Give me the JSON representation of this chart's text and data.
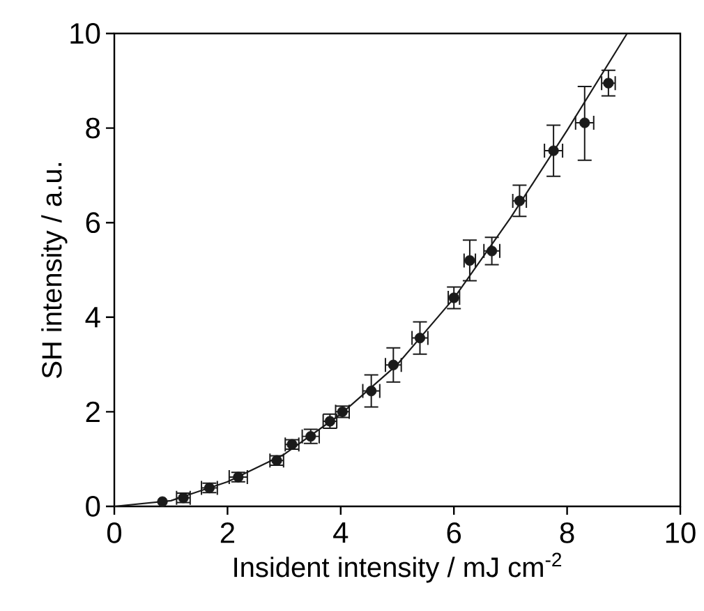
{
  "chart_data": {
    "type": "scatter",
    "xlabel": "Insident intensity / mJ cm$^{-2}$",
    "ylabel": "SH intensity / a.u.",
    "xlim": [
      0,
      10
    ],
    "ylim": [
      0,
      10
    ],
    "xticks": [
      0,
      2,
      4,
      6,
      8,
      10
    ],
    "yticks": [
      0,
      2,
      4,
      6,
      8,
      10
    ],
    "marker": "circle",
    "series": [
      {
        "type": "scatter",
        "color": "#1a1a1a",
        "x": [
          0.85,
          1.22,
          1.68,
          2.19,
          2.87,
          3.14,
          3.47,
          3.81,
          4.03,
          4.54,
          4.93,
          5.4,
          6.0,
          6.28,
          6.67,
          7.16,
          7.76,
          8.31,
          8.73
        ],
        "values": [
          0.1,
          0.18,
          0.39,
          0.62,
          0.97,
          1.31,
          1.48,
          1.8,
          2.0,
          2.44,
          2.99,
          3.56,
          4.41,
          5.2,
          5.4,
          6.46,
          7.52,
          8.11,
          8.95
        ],
        "errors": [
          null,
          0.1,
          0.1,
          0.1,
          0.1,
          0.1,
          0.15,
          0.15,
          0.12,
          0.34,
          0.36,
          0.34,
          0.23,
          0.43,
          0.29,
          0.33,
          0.54,
          [
            7.32,
            8.88
          ],
          0.27
        ],
        "xerrors": [
          null,
          0.12,
          0.14,
          0.16,
          0.12,
          0.12,
          0.15,
          0.12,
          0.12,
          0.15,
          0.14,
          0.14,
          0.1,
          0.1,
          0.14,
          0.12,
          0.16,
          0.16,
          0.12
        ]
      },
      {
        "color": "#1a1a1a",
        "marker": "none",
        "type": "line",
        "line_style": "solid",
        "x": [
          0,
          1,
          2,
          3,
          4,
          5,
          6,
          7,
          8,
          9.06
        ],
        "values": [
          0,
          0.12,
          0.52,
          1.1,
          1.95,
          3.0,
          4.4,
          6.1,
          7.95,
          10
        ]
      }
    ]
  }
}
